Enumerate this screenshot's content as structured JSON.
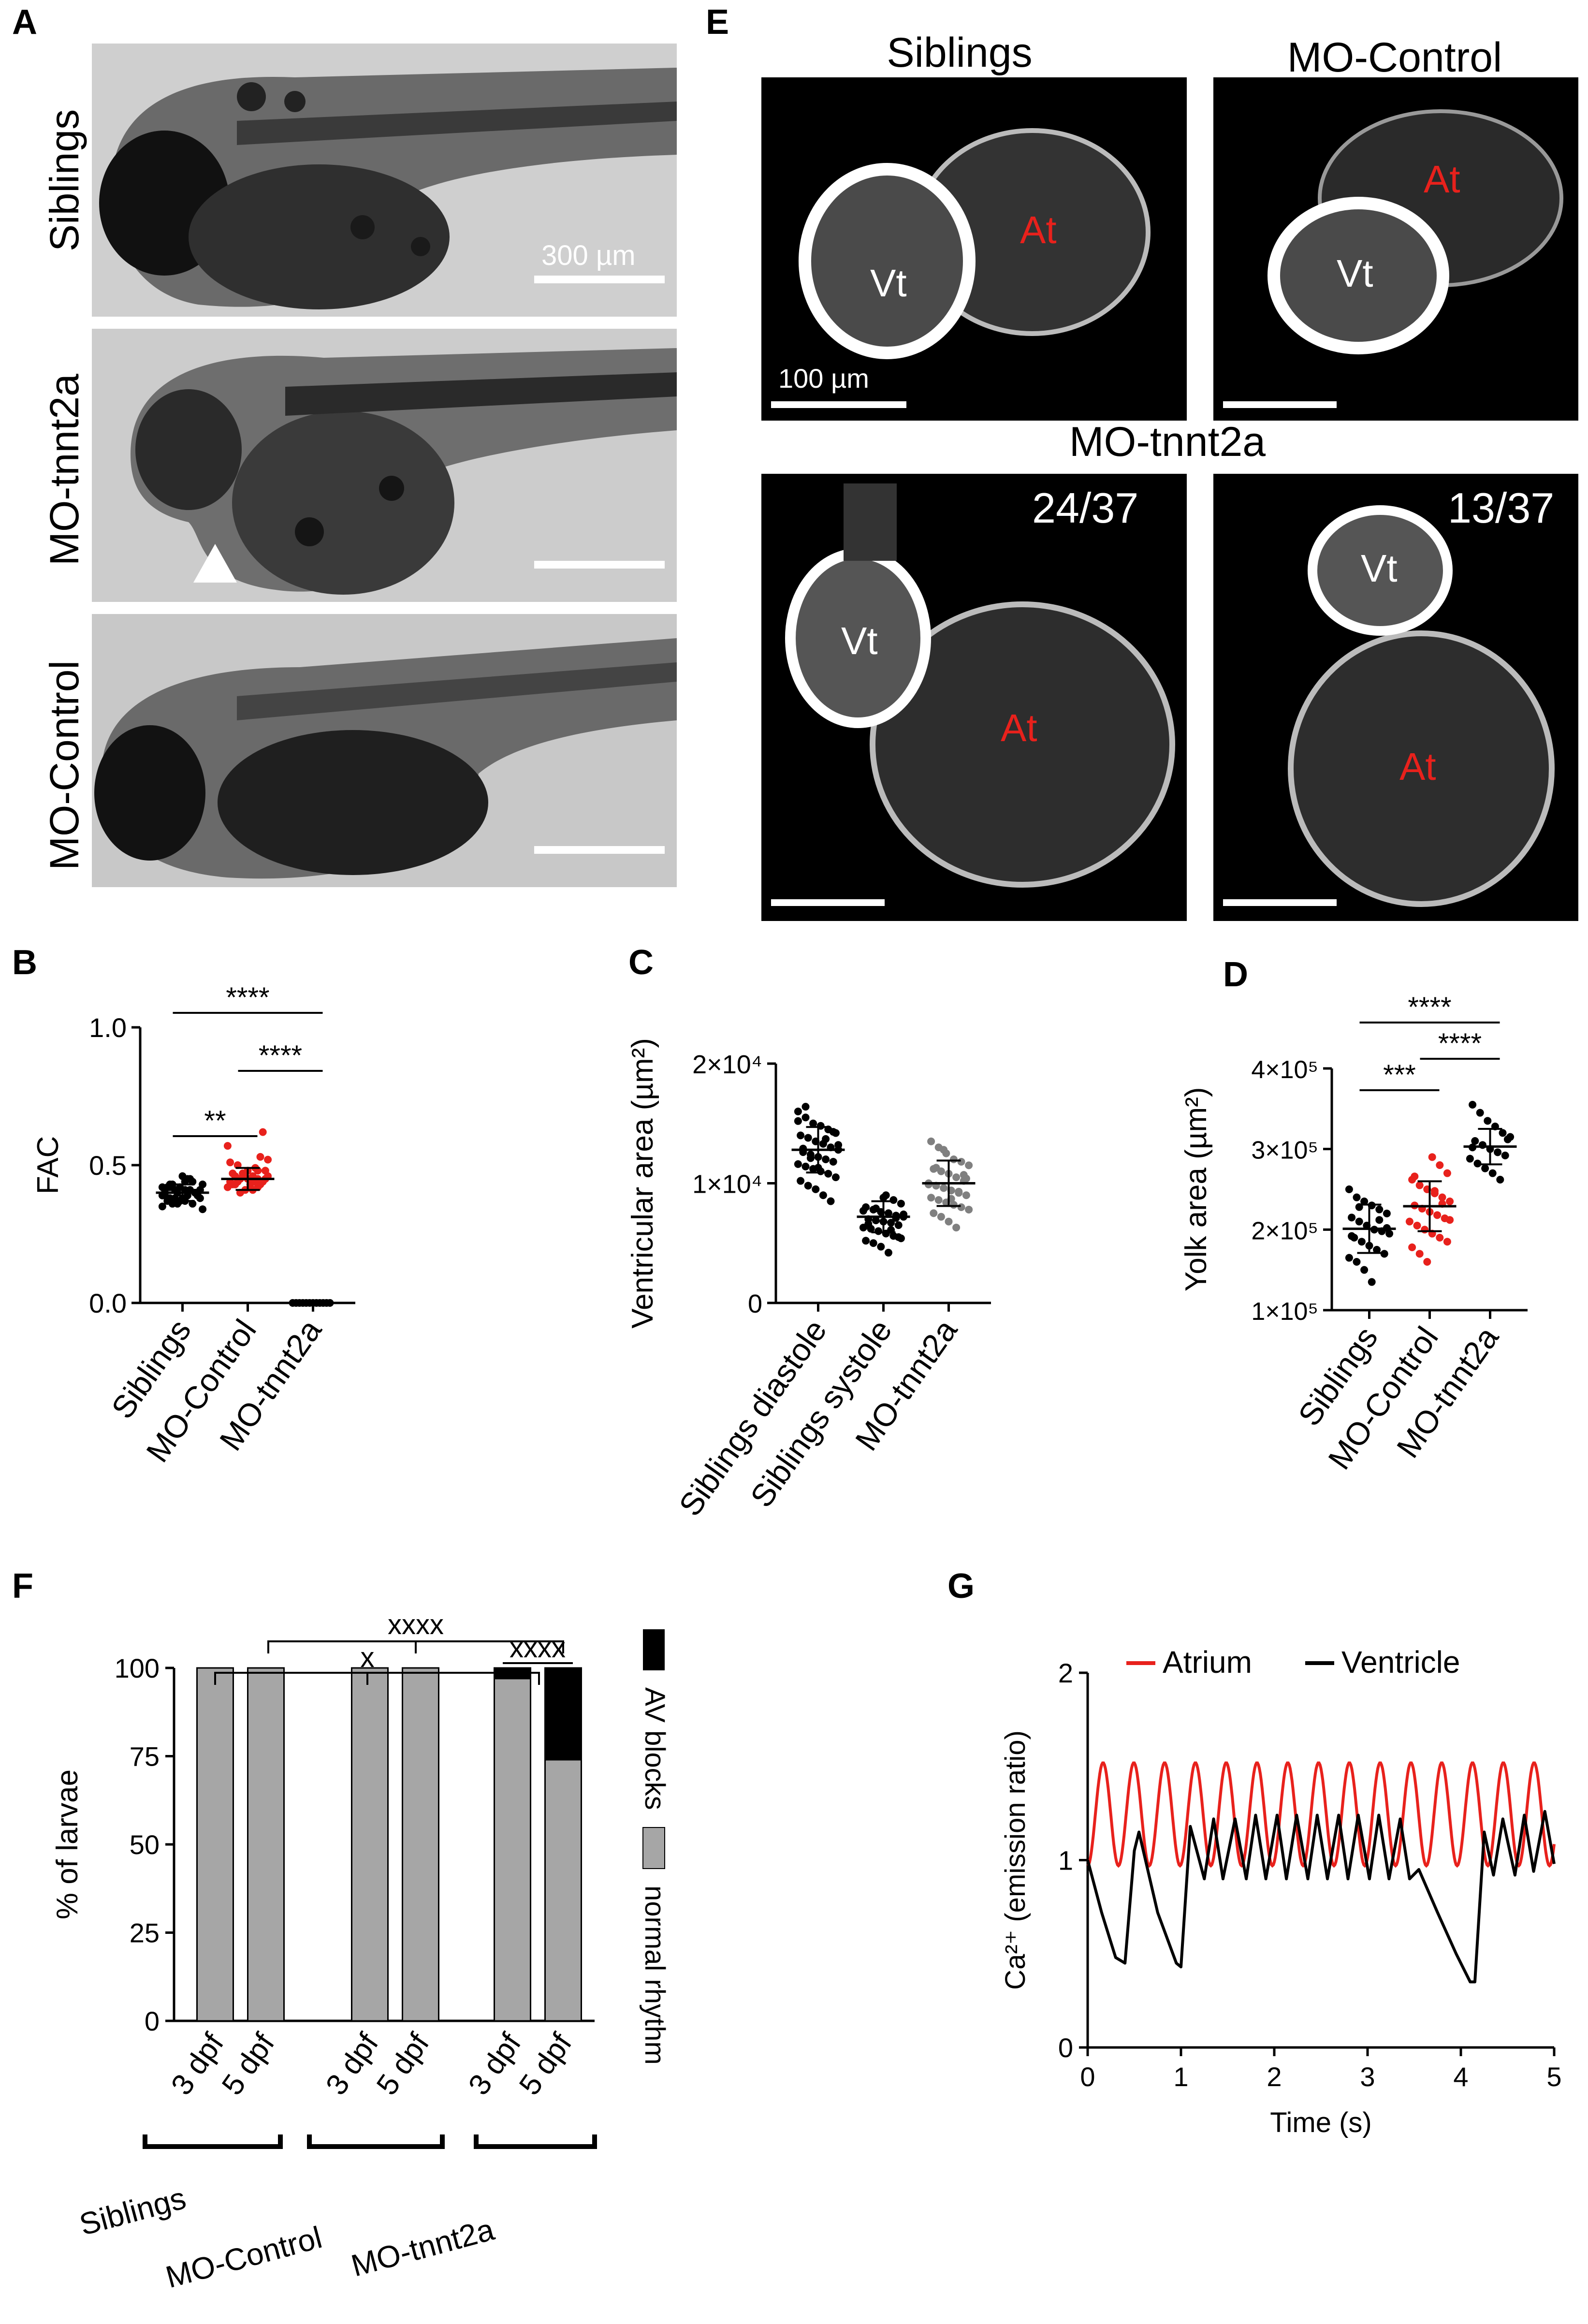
{
  "panels": {
    "A": "A",
    "B": "B",
    "C": "C",
    "D": "D",
    "E": "E",
    "F": "F",
    "G": "G"
  },
  "panel_a": {
    "rows": [
      "Siblings",
      "MO-tnnt2a",
      "MO-Control"
    ],
    "scale_label": "300 µm"
  },
  "panel_e": {
    "titles": [
      "Siblings",
      "MO-Control",
      "MO-tnnt2a"
    ],
    "scale_label": "100 µm",
    "fractions": [
      "24/37",
      "13/37"
    ],
    "chamber_labels": {
      "ventricle": "Vt",
      "atrium": "At"
    },
    "colors": {
      "atrium_label": "#e8211c",
      "ventricle_label": "#ffffff"
    }
  },
  "chart_data": [
    {
      "panel": "B",
      "type": "scatter",
      "ylabel": "FAC",
      "categories": [
        "Siblings",
        "MO-Control",
        "MO-tnnt2a"
      ],
      "ylim": [
        0.0,
        1.0
      ],
      "yticks": [
        "0.0",
        "0.5",
        "1.0"
      ],
      "series": [
        {
          "values": [
            0.42,
            0.38,
            0.4,
            0.44,
            0.36,
            0.41,
            0.39,
            0.43,
            0.37,
            0.45,
            0.4,
            0.34,
            0.42,
            0.38,
            0.46,
            0.41,
            0.39,
            0.35,
            0.43,
            0.4,
            0.37,
            0.44,
            0.38,
            0.41,
            0.36,
            0.42,
            0.39,
            0.4,
            0.43,
            0.37,
            0.41,
            0.38,
            0.45,
            0.4,
            0.39,
            0.42,
            0.36,
            0.41
          ],
          "mean": 0.4,
          "sd": 0.03,
          "color": "#000000"
        },
        {
          "values": [
            0.45,
            0.42,
            0.48,
            0.44,
            0.5,
            0.41,
            0.46,
            0.43,
            0.52,
            0.47,
            0.4,
            0.45,
            0.49,
            0.44,
            0.57,
            0.43,
            0.46,
            0.42,
            0.48,
            0.45,
            0.51,
            0.44,
            0.47,
            0.41,
            0.53,
            0.46,
            0.43,
            0.45,
            0.48,
            0.44,
            0.62,
            0.42,
            0.46,
            0.47,
            0.43,
            0.45
          ],
          "mean": 0.45,
          "sd": 0.04,
          "color": "#e8211c"
        },
        {
          "values": [
            0.0,
            0.0,
            0.0,
            0.0,
            0.0,
            0.0,
            0.0,
            0.0,
            0.0,
            0.0,
            0.0,
            0.0
          ],
          "mean": 0.0,
          "sd": 0.0,
          "color": "#000000"
        }
      ],
      "significance": [
        {
          "from": 0,
          "to": 2,
          "label": "****"
        },
        {
          "from": 1,
          "to": 2,
          "label": "****"
        },
        {
          "from": 0,
          "to": 1,
          "label": "**"
        }
      ]
    },
    {
      "panel": "C",
      "type": "scatter",
      "ylabel": "Ventricular area (µm²)",
      "categories": [
        "Siblings diastole",
        "Siblings systole",
        "MO-tnnt2a"
      ],
      "ylim": [
        0,
        20000
      ],
      "yticks": [
        "0",
        "1×10⁴",
        "2×10⁴"
      ],
      "series": [
        {
          "values": [
            16000,
            15500,
            15000,
            14800,
            14500,
            14200,
            14000,
            13800,
            13500,
            13300,
            13000,
            12800,
            12600,
            12400,
            12200,
            12000,
            11800,
            11600,
            11400,
            11200,
            11000,
            10800,
            10500,
            10200,
            9800,
            9500,
            9000,
            8500,
            13200,
            12900,
            12100,
            11300,
            13700,
            14300,
            15200,
            16400
          ],
          "mean": 12800,
          "sd": 1900,
          "color": "#000000"
        },
        {
          "values": [
            9000,
            8600,
            8300,
            8000,
            7800,
            7600,
            7500,
            7300,
            7200,
            7000,
            6900,
            6800,
            6700,
            6500,
            6300,
            6200,
            6000,
            5800,
            5600,
            5400,
            5200,
            5000,
            4700,
            4200,
            7100,
            7400,
            6600,
            7900,
            8800,
            6100,
            5500,
            7700
          ],
          "mean": 7200,
          "sd": 1300,
          "color": "#000000"
        },
        {
          "values": [
            13500,
            13000,
            12500,
            12000,
            11800,
            11500,
            11200,
            11000,
            10800,
            10500,
            10200,
            10000,
            9800,
            9600,
            9400,
            9200,
            9000,
            8800,
            8600,
            8400,
            8200,
            8000,
            7800,
            7500,
            7200,
            6800,
            6300,
            10700,
            9900,
            11300,
            12800,
            8700,
            9300,
            10400
          ],
          "mean": 10000,
          "sd": 1900,
          "color": "#808080"
        }
      ]
    },
    {
      "panel": "D",
      "type": "scatter",
      "ylabel": "Yolk area (µm²)",
      "categories": [
        "Siblings",
        "MO-Control",
        "MO-tnnt2a"
      ],
      "ylim": [
        100000,
        400000
      ],
      "yticks": [
        "1×10⁵",
        "2×10⁵",
        "3×10⁵",
        "4×10⁵"
      ],
      "series": [
        {
          "values": [
            250000,
            240000,
            235000,
            230000,
            225000,
            220000,
            215000,
            210000,
            205000,
            200000,
            198000,
            195000,
            190000,
            185000,
            180000,
            175000,
            170000,
            165000,
            160000,
            150000,
            135000,
            212000,
            202000,
            192000,
            228000
          ],
          "mean": 201000,
          "sd": 30000,
          "color": "#000000"
        },
        {
          "values": [
            290000,
            280000,
            270000,
            262000,
            255000,
            250000,
            245000,
            240000,
            235000,
            230000,
            226000,
            222000,
            218000,
            214000,
            210000,
            205000,
            200000,
            195000,
            190000,
            185000,
            178000,
            170000,
            160000,
            248000,
            232000,
            212000,
            266000
          ],
          "mean": 229000,
          "sd": 31000,
          "color": "#e8211c"
        },
        {
          "values": [
            355000,
            345000,
            335000,
            328000,
            320000,
            315000,
            310000,
            305000,
            300000,
            296000,
            292000,
            288000,
            282000,
            276000,
            270000,
            262000,
            312000,
            302000
          ],
          "mean": 303000,
          "sd": 22000,
          "color": "#000000"
        }
      ],
      "significance": [
        {
          "from": 0,
          "to": 2,
          "label": "****"
        },
        {
          "from": 1,
          "to": 2,
          "label": "****"
        },
        {
          "from": 0,
          "to": 1,
          "label": "***"
        }
      ]
    },
    {
      "panel": "F",
      "type": "bar",
      "ylabel": "% of larvae",
      "categories": [
        "3 dpf",
        "5 dpf",
        "3 dpf",
        "5 dpf",
        "3 dpf",
        "5 dpf"
      ],
      "groups": [
        "Siblings",
        "MO-Control",
        "MO-tnnt2a"
      ],
      "ylim": [
        0,
        100
      ],
      "yticks": [
        "0",
        "25",
        "50",
        "75",
        "100"
      ],
      "series": [
        {
          "name": "normal rhythm",
          "values": [
            100,
            100,
            100,
            100,
            97,
            74
          ],
          "color": "#a6a6a6"
        },
        {
          "name": "AV blocks",
          "values": [
            0,
            0,
            0,
            0,
            3,
            26
          ],
          "color": "#000000"
        }
      ],
      "significance": [
        {
          "label": "xxxx",
          "between": "MO-Control vs MO-tnnt2a"
        },
        {
          "label": "x",
          "between": "Siblings vs MO-tnnt2a"
        },
        {
          "label": "xxxx",
          "between": "MO-tnnt2a 3 dpf vs 5 dpf"
        }
      ]
    },
    {
      "panel": "G",
      "type": "line",
      "xlabel": "Time (s)",
      "ylabel": "Ca²⁺ (emission ratio)",
      "xlim": [
        0,
        5
      ],
      "ylim": [
        0,
        2
      ],
      "xticks": [
        "0",
        "1",
        "2",
        "3",
        "4",
        "5"
      ],
      "yticks": [
        "0",
        "1",
        "2"
      ],
      "series": [
        {
          "name": "Atrium",
          "color": "#e8211c",
          "period_s": 0.33,
          "min": 0.97,
          "max": 1.52
        },
        {
          "name": "Ventricle",
          "color": "#000000",
          "x": [
            0.0,
            0.15,
            0.3,
            0.4,
            0.5,
            0.55,
            0.75,
            0.95,
            1.0,
            1.1,
            1.25,
            1.35,
            1.45,
            1.58,
            1.7,
            1.8,
            1.91,
            2.03,
            2.13,
            2.24,
            2.36,
            2.46,
            2.57,
            2.69,
            2.79,
            2.9,
            3.02,
            3.12,
            3.23,
            3.35,
            3.45,
            3.55,
            3.75,
            3.95,
            4.1,
            4.15,
            4.25,
            4.35,
            4.45,
            4.58,
            4.68,
            4.78,
            4.9,
            5.0
          ],
          "y": [
            1.0,
            0.72,
            0.48,
            0.45,
            1.05,
            1.15,
            0.72,
            0.45,
            0.43,
            1.18,
            0.9,
            1.22,
            0.9,
            1.22,
            0.9,
            1.24,
            0.9,
            1.24,
            0.9,
            1.24,
            0.9,
            1.24,
            0.9,
            1.24,
            0.9,
            1.24,
            0.9,
            1.24,
            0.9,
            1.22,
            0.9,
            0.95,
            0.72,
            0.5,
            0.35,
            0.35,
            1.15,
            0.92,
            1.22,
            0.92,
            1.24,
            0.94,
            1.26,
            0.98
          ]
        }
      ]
    }
  ]
}
